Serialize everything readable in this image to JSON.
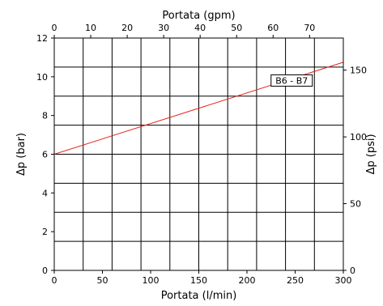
{
  "chart_data": {
    "type": "line",
    "title": "",
    "xlabel": "Portata (l/min)",
    "ylabel": "Δp (bar)",
    "xlim": [
      0,
      300
    ],
    "ylim": [
      0,
      12
    ],
    "x_ticks": [
      0,
      50,
      100,
      150,
      200,
      250,
      300
    ],
    "y_ticks": [
      0,
      2,
      4,
      6,
      8,
      10,
      12
    ],
    "x_top": {
      "label": "Portata (gpm)",
      "ticks": [
        0,
        10,
        20,
        30,
        40,
        50,
        60,
        70
      ],
      "factor": 0.264172
    },
    "y_right": {
      "label": "Δp (psi)",
      "ticks": [
        0,
        50,
        100,
        150
      ],
      "factor": 14.5038
    },
    "grid": true,
    "series": [
      {
        "name": "B6 - B7",
        "color": "#e8231e",
        "x": [
          0,
          300
        ],
        "y": [
          6.0,
          10.75
        ]
      }
    ]
  }
}
